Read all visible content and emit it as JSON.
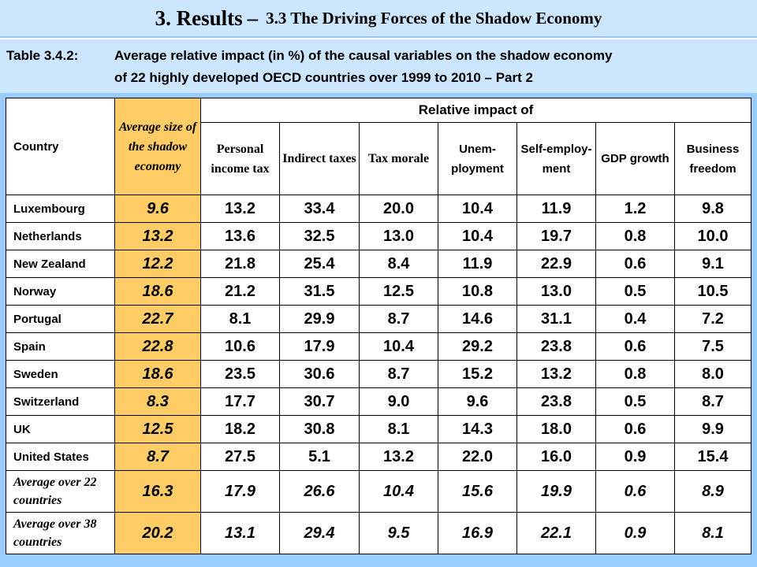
{
  "slide": {
    "title_main": "3. Results",
    "title_sep": "–",
    "title_sub": "3.3 The Driving Forces of the Shadow Economy"
  },
  "caption": {
    "label": "Table 3.4.2:",
    "line1": "Average relative impact (in %) of the causal variables on the shadow economy",
    "line2": "of 22 highly developed OECD countries over 1999 to 2010 – Part 2"
  },
  "table": {
    "col_country": "Country",
    "col_size": "Average size of the shadow economy",
    "group_header": "Relative impact of",
    "sub_headers": [
      "Personal income tax",
      "Indirect taxes",
      "Tax morale",
      "Unem-ployment",
      "Self-employ-ment",
      "GDP growth",
      "Business freedom"
    ],
    "rows": [
      {
        "country": "Luxembourg",
        "size": "9.6",
        "values": [
          "13.2",
          "33.4",
          "20.0",
          "10.4",
          "11.9",
          "1.2",
          "9.8"
        ]
      },
      {
        "country": "Netherlands",
        "size": "13.2",
        "values": [
          "13.6",
          "32.5",
          "13.0",
          "10.4",
          "19.7",
          "0.8",
          "10.0"
        ]
      },
      {
        "country": "New Zealand",
        "size": "12.2",
        "values": [
          "21.8",
          "25.4",
          "8.4",
          "11.9",
          "22.9",
          "0.6",
          "9.1"
        ]
      },
      {
        "country": "Norway",
        "size": "18.6",
        "values": [
          "21.2",
          "31.5",
          "12.5",
          "10.8",
          "13.0",
          "0.5",
          "10.5"
        ]
      },
      {
        "country": "Portugal",
        "size": "22.7",
        "values": [
          "8.1",
          "29.9",
          "8.7",
          "14.6",
          "31.1",
          "0.4",
          "7.2"
        ]
      },
      {
        "country": "Spain",
        "size": "22.8",
        "values": [
          "10.6",
          "17.9",
          "10.4",
          "29.2",
          "23.8",
          "0.6",
          "7.5"
        ]
      },
      {
        "country": "Sweden",
        "size": "18.6",
        "values": [
          "23.5",
          "30.6",
          "8.7",
          "15.2",
          "13.2",
          "0.8",
          "8.0"
        ]
      },
      {
        "country": "Switzerland",
        "size": "8.3",
        "values": [
          "17.7",
          "30.7",
          "9.0",
          "9.6",
          "23.8",
          "0.5",
          "8.7"
        ]
      },
      {
        "country": "UK",
        "size": "12.5",
        "values": [
          "18.2",
          "30.8",
          "8.1",
          "14.3",
          "18.0",
          "0.6",
          "9.9"
        ]
      },
      {
        "country": "United States",
        "size": "8.7",
        "values": [
          "27.5",
          "5.1",
          "13.2",
          "22.0",
          "16.0",
          "0.9",
          "15.4"
        ]
      }
    ],
    "averages": [
      {
        "country": "Average over 22 countries",
        "size": "16.3",
        "values": [
          "17.9",
          "26.6",
          "10.4",
          "15.6",
          "19.9",
          "0.6",
          "8.9"
        ]
      },
      {
        "country": "Average over 38 countries",
        "size": "20.2",
        "values": [
          "13.1",
          "29.4",
          "9.5",
          "16.9",
          "22.1",
          "0.9",
          "8.1"
        ]
      }
    ]
  }
}
